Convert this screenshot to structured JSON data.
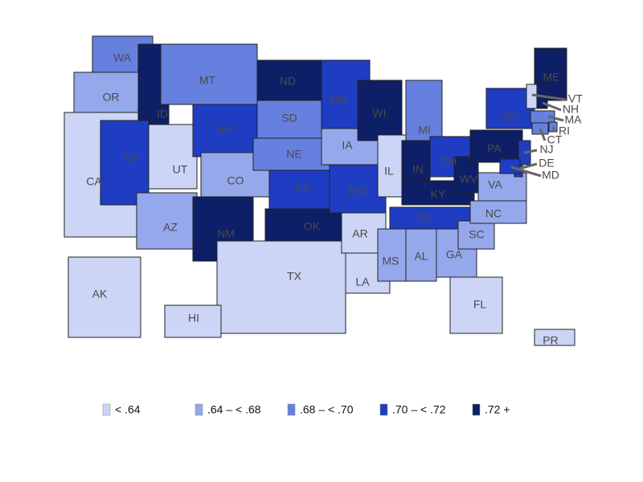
{
  "map": {
    "states": [
      {
        "label": "WA",
        "class": 2
      },
      {
        "label": "OR",
        "class": 1
      },
      {
        "label": "CA",
        "class": 0
      },
      {
        "label": "ID",
        "class": 4
      },
      {
        "label": "NV",
        "class": 3
      },
      {
        "label": "UT",
        "class": 0
      },
      {
        "label": "AZ",
        "class": 1
      },
      {
        "label": "MT",
        "class": 2
      },
      {
        "label": "WY",
        "class": 3
      },
      {
        "label": "CO",
        "class": 1
      },
      {
        "label": "NM",
        "class": 4
      },
      {
        "label": "ND",
        "class": 4
      },
      {
        "label": "SD",
        "class": 2
      },
      {
        "label": "NE",
        "class": 2
      },
      {
        "label": "KS",
        "class": 3
      },
      {
        "label": "OK",
        "class": 4
      },
      {
        "label": "TX",
        "class": 0
      },
      {
        "label": "MN",
        "class": 3
      },
      {
        "label": "IA",
        "class": 1
      },
      {
        "label": "MO",
        "class": 3
      },
      {
        "label": "AR",
        "class": 0
      },
      {
        "label": "LA",
        "class": 0
      },
      {
        "label": "WI",
        "class": 4
      },
      {
        "label": "IL",
        "class": 0
      },
      {
        "label": "MI",
        "class": 2
      },
      {
        "label": "IN",
        "class": 4
      },
      {
        "label": "OH",
        "class": 3
      },
      {
        "label": "KY",
        "class": 4
      },
      {
        "label": "TN",
        "class": 3
      },
      {
        "label": "MS",
        "class": 1
      },
      {
        "label": "AL",
        "class": 1
      },
      {
        "label": "GA",
        "class": 1
      },
      {
        "label": "FL",
        "class": 0
      },
      {
        "label": "SC",
        "class": 1
      },
      {
        "label": "NC",
        "class": 1
      },
      {
        "label": "VA",
        "class": 1
      },
      {
        "label": "WV",
        "class": 4
      },
      {
        "label": "PA",
        "class": 4
      },
      {
        "label": "NY",
        "class": 3
      },
      {
        "label": "ME",
        "class": 4
      },
      {
        "label": "VT",
        "class": 0
      },
      {
        "label": "NH",
        "class": 4
      },
      {
        "label": "MA",
        "class": 2
      },
      {
        "label": "RI",
        "class": 2
      },
      {
        "label": "CT",
        "class": 2
      },
      {
        "label": "NJ",
        "class": 3
      },
      {
        "label": "DE",
        "class": 3
      },
      {
        "label": "MD",
        "class": 3
      },
      {
        "label": "AK",
        "class": 0
      },
      {
        "label": "HI",
        "class": 0
      },
      {
        "label": "PR",
        "class": 0
      }
    ],
    "legend": [
      {
        "label": "< .64",
        "color": "#ccd5f5"
      },
      {
        "label": ".64 – < .68",
        "color": "#95a8ec"
      },
      {
        "label": ".68 – < .70",
        "color": "#6680e0"
      },
      {
        "label": ".70 – < .72",
        "color": "#1f3dc2"
      },
      {
        "label": ".72 +",
        "color": "#0d1f66"
      }
    ]
  }
}
